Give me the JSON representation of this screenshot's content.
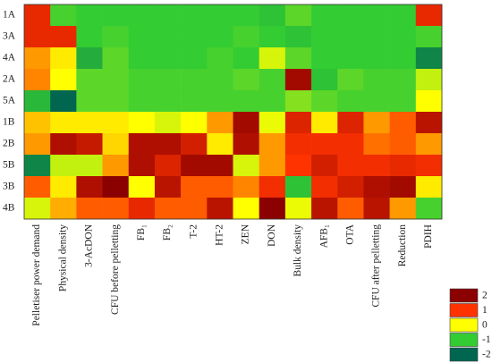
{
  "chart_data": {
    "type": "heatmap",
    "rows": [
      "1A",
      "3A",
      "4A",
      "2A",
      "5A",
      "1B",
      "2B",
      "5B",
      "3B",
      "4B"
    ],
    "columns": [
      "Pelletiser power demand",
      "Physical density",
      "3-AcDON",
      "CFU before pelletting",
      "FB₁",
      "FB₂",
      "T-2",
      "HT-2",
      "ZEN",
      "DON",
      "Bulk density",
      "AFB₁",
      "OTA",
      "CFU after pelletting",
      "Reduction",
      "PDIH"
    ],
    "values": [
      [
        1.2,
        -0.9,
        -1,
        -1,
        -1,
        -1,
        -1,
        -1,
        -1,
        -1.1,
        -0.8,
        -1,
        -1,
        -1,
        -1,
        1.2
      ],
      [
        1.2,
        1.2,
        -1,
        -0.9,
        -1,
        -1,
        -1,
        -1,
        -0.9,
        -1,
        -1.1,
        -1,
        -1,
        -1,
        -1,
        -0.9
      ],
      [
        0.5,
        0.1,
        -1.3,
        -0.8,
        -1,
        -1,
        -1,
        -0.9,
        -1,
        -0.2,
        -0.8,
        -1,
        -1,
        -1,
        -1,
        -1.7
      ],
      [
        0.6,
        0,
        -0.8,
        -0.8,
        -0.9,
        -0.9,
        -0.9,
        -0.9,
        -0.8,
        -0.9,
        1.8,
        -1.1,
        -0.8,
        -0.9,
        -0.9,
        -0.3
      ],
      [
        -1.2,
        -2,
        -0.8,
        -0.8,
        -0.9,
        -0.9,
        -0.9,
        -0.9,
        -0.9,
        -0.9,
        -0.6,
        -0.8,
        -0.9,
        -0.9,
        -0.9,
        0
      ],
      [
        0.3,
        0.1,
        0.1,
        0.1,
        0,
        -0.2,
        0,
        0.5,
        1.8,
        -0.1,
        1.3,
        0.1,
        1.3,
        0.5,
        0.8,
        1.6
      ],
      [
        0.5,
        1.7,
        1.5,
        0.2,
        1.7,
        1.7,
        1.4,
        0.1,
        1.7,
        0.5,
        1.1,
        1.1,
        1.1,
        0.7,
        0.8,
        0.5
      ],
      [
        -1.7,
        -0.3,
        -0.3,
        0.5,
        1.7,
        1.3,
        1.8,
        1.8,
        -0.2,
        0.5,
        1,
        1.4,
        1.1,
        1.1,
        1.2,
        1.1
      ],
      [
        0.8,
        0.1,
        1.7,
        2,
        0,
        1.6,
        0.8,
        0.8,
        0.6,
        1.1,
        -1.1,
        1.1,
        1.4,
        1.7,
        1.8,
        0.1
      ],
      [
        -0.2,
        0.4,
        0.8,
        0.8,
        1.2,
        0.8,
        0.8,
        1.6,
        0,
        2,
        -0.1,
        1.6,
        0.8,
        1.6,
        0.5,
        -0.9
      ]
    ],
    "legend": {
      "values": [
        2,
        1,
        0,
        -1,
        -2
      ],
      "colors": [
        "#8b0000",
        "#ff3300",
        "#ffff00",
        "#33cc33",
        "#006650"
      ]
    }
  }
}
